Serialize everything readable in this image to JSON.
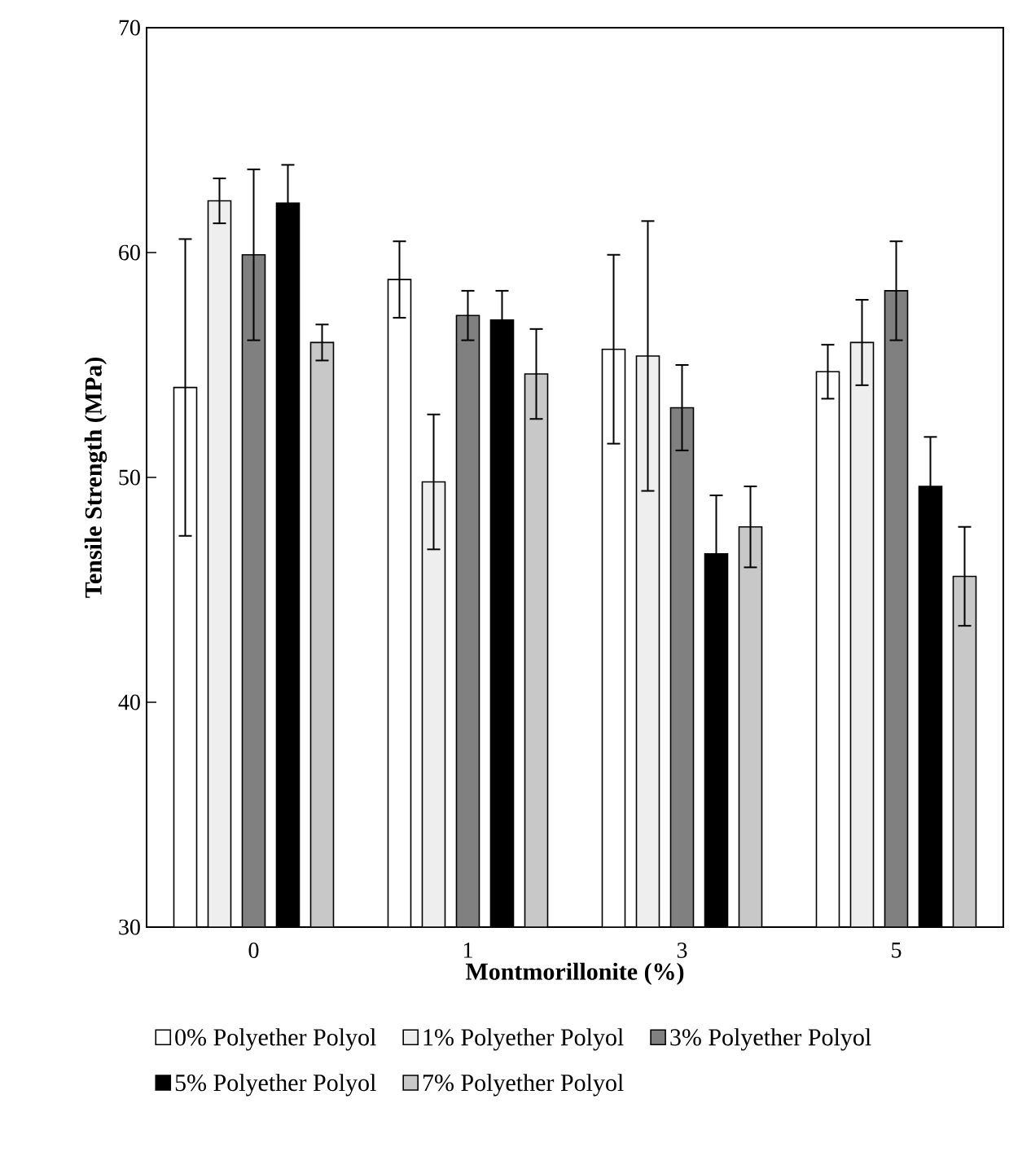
{
  "chart_data": {
    "type": "bar",
    "xlabel": "Montmorillonite (%)",
    "ylabel": "Tensile Strength (MPa)",
    "categories": [
      "0",
      "1",
      "3",
      "5"
    ],
    "ylim": [
      30,
      70
    ],
    "yticks": [
      30,
      40,
      50,
      60,
      70
    ],
    "legend": "bottom",
    "grid": false,
    "series": [
      {
        "name": "0% Polyether Polyol",
        "color": "#ffffff",
        "values": [
          54.0,
          58.8,
          55.7,
          54.7
        ],
        "errors": [
          6.6,
          1.7,
          4.2,
          1.2
        ]
      },
      {
        "name": "1% Polyether Polyol",
        "color": "#eeeeee",
        "values": [
          62.3,
          49.8,
          55.4,
          56.0
        ],
        "errors": [
          1.0,
          3.0,
          6.0,
          1.9
        ]
      },
      {
        "name": "3% Polyether Polyol",
        "color": "#808080",
        "values": [
          59.9,
          57.2,
          53.1,
          58.3
        ],
        "errors": [
          3.8,
          1.1,
          1.9,
          2.2
        ]
      },
      {
        "name": "5% Polyether Polyol",
        "color": "#000000",
        "values": [
          62.2,
          57.0,
          46.6,
          49.6
        ],
        "errors": [
          1.7,
          1.3,
          2.6,
          2.2
        ]
      },
      {
        "name": "7% Polyether Polyol",
        "color": "#c8c8c8",
        "values": [
          56.0,
          54.6,
          47.8,
          45.6
        ],
        "errors": [
          0.8,
          2.0,
          1.8,
          2.2
        ]
      }
    ]
  }
}
